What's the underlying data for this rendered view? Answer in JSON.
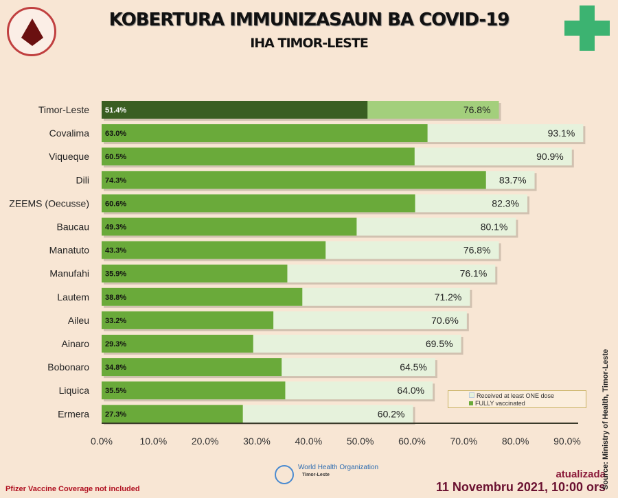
{
  "header": {
    "title": "KOBERTURA IMMUNIZASAUN  BA COVID-19",
    "subtitle": "IHA TIMOR-LESTE",
    "ministry_logo": "Ministério da Saúde"
  },
  "chart_data": {
    "type": "bar",
    "orientation": "horizontal",
    "categories": [
      "Timor-Leste",
      "Covalima",
      "Viqueque",
      "Dili",
      "ZEEMS (Oecusse)",
      "Baucau",
      "Manatuto",
      "Manufahi",
      "Lautem",
      "Aileu",
      "Ainaro",
      "Bobonaro",
      "Liquica",
      "Ermera"
    ],
    "series": [
      {
        "name": "Received at least ONE dose",
        "values": [
          76.8,
          93.1,
          90.9,
          83.7,
          82.3,
          80.1,
          76.8,
          76.1,
          71.2,
          70.6,
          69.5,
          64.5,
          64.0,
          60.2
        ],
        "labels": [
          "76.8%",
          "93.1%",
          "90.9%",
          "83.7%",
          "82.3%",
          "80.1%",
          "76.8%",
          "76.1%",
          "71.2%",
          "70.6%",
          "69.5%",
          "64.5%",
          "64.0%",
          "60.2%"
        ],
        "color": "#e6f2dc",
        "highlight_color": "#a3cf7c"
      },
      {
        "name": "FULLY vaccinated",
        "values": [
          51.4,
          63.0,
          60.5,
          74.3,
          60.6,
          49.3,
          43.3,
          35.9,
          38.8,
          33.2,
          29.3,
          34.8,
          35.5,
          27.3
        ],
        "labels": [
          "51.4%",
          "63.0%",
          "60.5%",
          "74.3%",
          "60.6%",
          "49.3%",
          "43.3%",
          "35.9%",
          "38.8%",
          "33.2%",
          "29.3%",
          "34.8%",
          "35.5%",
          "27.3%"
        ],
        "color": "#6aaa3a",
        "highlight_color": "#3a5e22"
      }
    ],
    "xlim": [
      0,
      90
    ],
    "xticks": [
      "0.0%",
      "10.0%",
      "20.0%",
      "30.0%",
      "40.0%",
      "50.0%",
      "60.0%",
      "70.0%",
      "80.0%",
      "90.0%"
    ],
    "legend_position": "bottom-right",
    "grid": false
  },
  "legend": {
    "one_dose": "Received at least ONE dose",
    "fully": "FULLY vaccinated"
  },
  "footer": {
    "note": "Pfizer Vaccine Coverage not included",
    "updated_label": "atualizada",
    "updated_date": "11 Novembru 2021, 10:00 ors",
    "source": "Source: Ministry of Health, Timor-Leste",
    "who_name": "World Health Organization",
    "who_sub": "Timor-Leste"
  }
}
